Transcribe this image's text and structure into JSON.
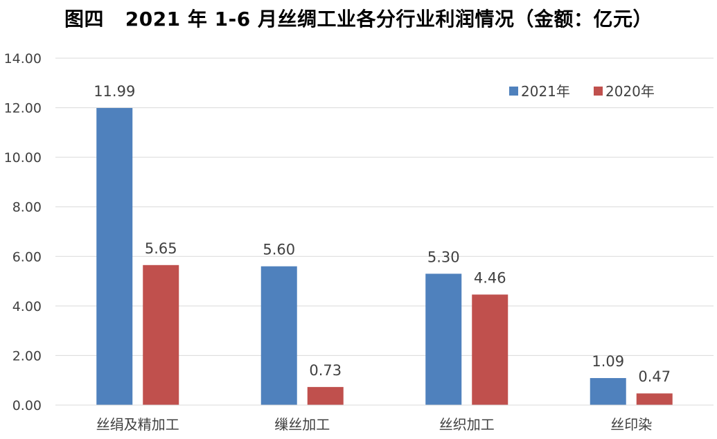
{
  "chart_data": {
    "type": "bar",
    "title": "图四   2021 年 1-6 月丝绸工业各分行业利润情况（金额：亿元）",
    "categories": [
      "丝绢及精加工",
      "缫丝加工",
      "丝织加工",
      "丝印染"
    ],
    "series": [
      {
        "name": "2021年",
        "color": "#4F81BD",
        "values": [
          11.99,
          5.6,
          5.3,
          1.09
        ],
        "labels": [
          "11.99",
          "5.60",
          "5.30",
          "1.09"
        ]
      },
      {
        "name": "2020年",
        "color": "#C0504D",
        "values": [
          5.65,
          0.73,
          4.46,
          0.47
        ],
        "labels": [
          "5.65",
          "0.73",
          "4.46",
          "0.47"
        ]
      }
    ],
    "ylim": [
      0,
      14
    ],
    "yticks": [
      "0.00",
      "2.00",
      "4.00",
      "6.00",
      "8.00",
      "10.00",
      "12.00",
      "14.00"
    ],
    "grid": true,
    "legend_position": "top-right",
    "xlabel": "",
    "ylabel": ""
  }
}
